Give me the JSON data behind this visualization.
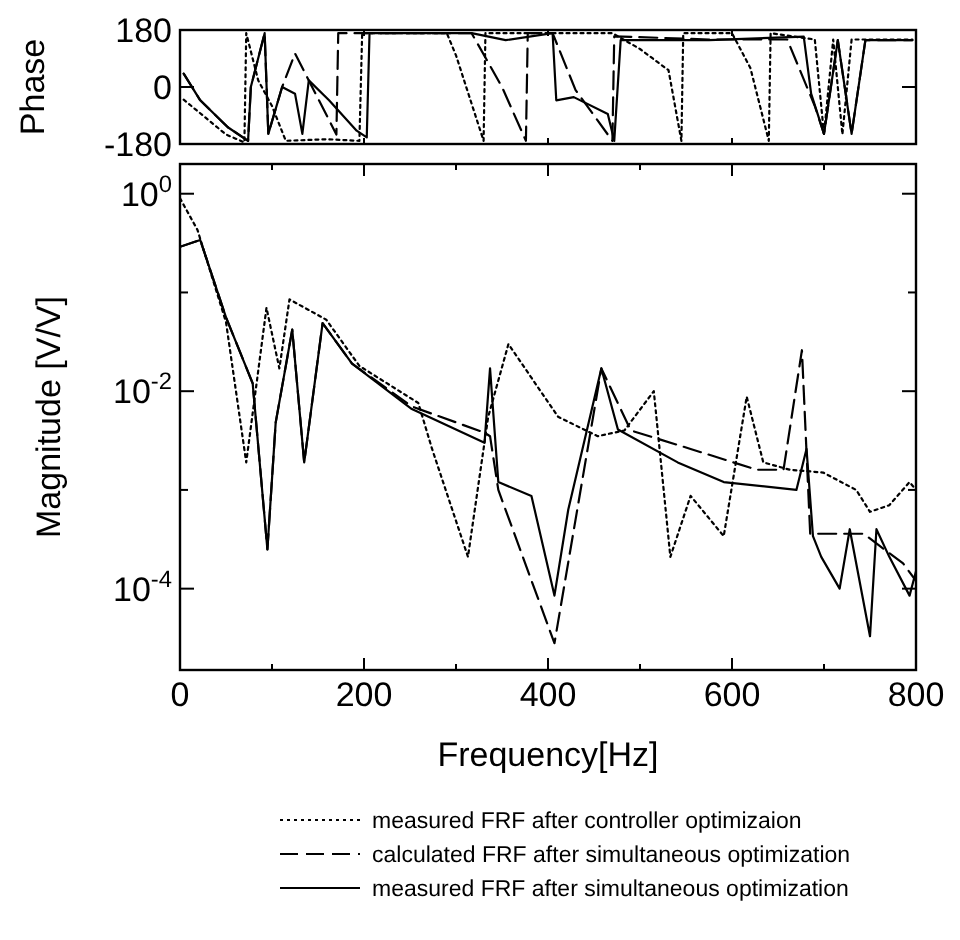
{
  "chart_data": [
    {
      "type": "line",
      "ylabel": "Phase",
      "xlim": [
        0,
        800
      ],
      "xticks": [
        {
          "value": 0,
          "label": null
        },
        {
          "value": 200,
          "label": null
        },
        {
          "value": 400,
          "label": null
        },
        {
          "value": 600,
          "label": null
        },
        {
          "value": 800,
          "label": null
        }
      ],
      "ylim": [
        -180,
        180
      ],
      "yticks": [
        -180,
        0,
        180
      ],
      "tick_labels": "y",
      "grid": false,
      "legend": false,
      "series": [
        {
          "color": "#000000",
          "line_style": "dotted",
          "x": [
            4,
            50,
            70,
            72,
            85,
            100,
            115,
            160,
            195,
            198,
            290,
            300,
            330,
            332,
            420,
            470,
            500,
            531,
            545,
            547,
            600,
            620,
            640,
            642,
            690,
            700,
            710,
            720,
            730,
            760,
            796
          ],
          "values": [
            -40,
            -150,
            -175,
            170,
            21,
            -60,
            -170,
            -165,
            -170,
            170,
            170,
            100,
            -170,
            170,
            170,
            170,
            120,
            53,
            -170,
            170,
            170,
            60,
            -170,
            170,
            150,
            -150,
            150,
            -150,
            150,
            150,
            150
          ]
        },
        {
          "color": "#000000",
          "line_style": "dashed",
          "x": [
            4,
            22,
            52,
            74,
            77,
            92,
            96,
            111,
            125,
            170,
            172,
            317,
            350,
            376,
            378,
            405,
            430,
            470,
            472,
            575,
            660,
            690,
            700,
            715,
            730,
            745,
            796
          ],
          "values": [
            42,
            -42,
            -127,
            -170,
            0,
            170,
            -148,
            0,
            106,
            -150,
            170,
            170,
            0,
            -170,
            170,
            170,
            -10,
            -170,
            160,
            150,
            150,
            -60,
            -148,
            148,
            -148,
            148,
            148
          ]
        },
        {
          "color": "#000000",
          "line_style": "solid",
          "x": [
            4,
            22,
            52,
            74,
            77,
            92,
            96,
            111,
            125,
            133,
            140,
            162,
            192,
            203,
            206,
            317,
            354,
            405,
            409,
            428,
            465,
            472,
            479,
            575,
            678,
            686,
            700,
            715,
            730,
            745,
            796
          ],
          "values": [
            42,
            -42,
            -127,
            -170,
            0,
            170,
            -148,
            0,
            -21,
            -148,
            21,
            -42,
            -138,
            -159,
            170,
            170,
            148,
            170,
            -42,
            -32,
            -85,
            -170,
            148,
            148,
            159,
            -21,
            -148,
            148,
            -148,
            148,
            148
          ]
        }
      ]
    },
    {
      "type": "line",
      "xlabel": "Frequency[Hz]",
      "ylabel": "Magnitude [V/V]",
      "xlim": [
        0,
        800
      ],
      "xticks": [
        0,
        {
          "value": 100,
          "label": null
        },
        200,
        {
          "value": 300,
          "label": null
        },
        400,
        {
          "value": 500,
          "label": null
        },
        600,
        {
          "value": 700,
          "label": null
        },
        800
      ],
      "ylim": [
        1.5e-05,
        2
      ],
      "yticks": [
        {
          "value": 1,
          "label": "10$^{0}$"
        },
        {
          "value": 0.1,
          "label": null
        },
        {
          "value": 0.01,
          "label": "10$^{-2}$"
        },
        {
          "value": 0.001,
          "label": null
        },
        {
          "value": 0.0001,
          "label": "10$^{-4}$"
        }
      ],
      "log": "y",
      "grid": false,
      "legend": "bottom",
      "series": [
        {
          "name": "measured FRF after controller optimizaion",
          "color": "#000000",
          "line_style": "dotted",
          "x": [
            0,
            19,
            50,
            72,
            94,
            108,
            119,
            159,
            195,
            259,
            274,
            313,
            335,
            357,
            411,
            454,
            483,
            515,
            533,
            555,
            591,
            616,
            634,
            663,
            699,
            735,
            750,
            771,
            793,
            800
          ],
          "values": [
            0.9,
            0.43,
            0.05,
            0.0019,
            0.07,
            0.017,
            0.085,
            0.053,
            0.018,
            0.0076,
            0.0026,
            0.00021,
            0.0055,
            0.03,
            0.0055,
            0.0035,
            0.004,
            0.01,
            0.00021,
            0.00087,
            0.00034,
            0.0088,
            0.0019,
            0.0016,
            0.0015,
            0.001,
            0.0006,
            0.0007,
            0.0012,
            0.001
          ]
        },
        {
          "name": "calculated FRF after simultaneous optimization",
          "color": "#000000",
          "line_style": "dashed",
          "x": [
            0,
            22,
            50,
            79,
            95,
            104,
            122,
            135,
            155,
            187,
            252,
            331,
            337,
            346,
            407,
            458,
            490,
            555,
            627,
            656,
            676,
            685,
            743,
            786,
            800
          ],
          "values": [
            0.29,
            0.34,
            0.056,
            0.012,
            0.00025,
            0.0048,
            0.042,
            0.0019,
            0.049,
            0.019,
            0.007,
            0.0038,
            0.0035,
            0.001,
            2.8e-05,
            0.017,
            0.004,
            0.0026,
            0.0016,
            0.0016,
            0.026,
            0.00036,
            0.00036,
            0.00018,
            0.00012
          ]
        },
        {
          "name": "measured FRF after simultaneous optimization",
          "color": "#000000",
          "line_style": "solid",
          "x": [
            0,
            22,
            50,
            79,
            95,
            104,
            122,
            135,
            155,
            187,
            252,
            331,
            337,
            346,
            382,
            407,
            422,
            458,
            476,
            541,
            591,
            670,
            681,
            688,
            697,
            717,
            728,
            750,
            757,
            771,
            793,
            800
          ],
          "values": [
            0.29,
            0.34,
            0.056,
            0.012,
            0.00025,
            0.0048,
            0.042,
            0.0019,
            0.049,
            0.019,
            0.0066,
            0.003,
            0.017,
            0.0012,
            0.00087,
            8.5e-05,
            0.00063,
            0.017,
            0.0041,
            0.0019,
            0.0012,
            0.001,
            0.0026,
            0.00034,
            0.00021,
            0.0001,
            0.0004,
            3.3e-05,
            0.0004,
            0.00021,
            8.5e-05,
            0.00015
          ]
        }
      ]
    }
  ]
}
